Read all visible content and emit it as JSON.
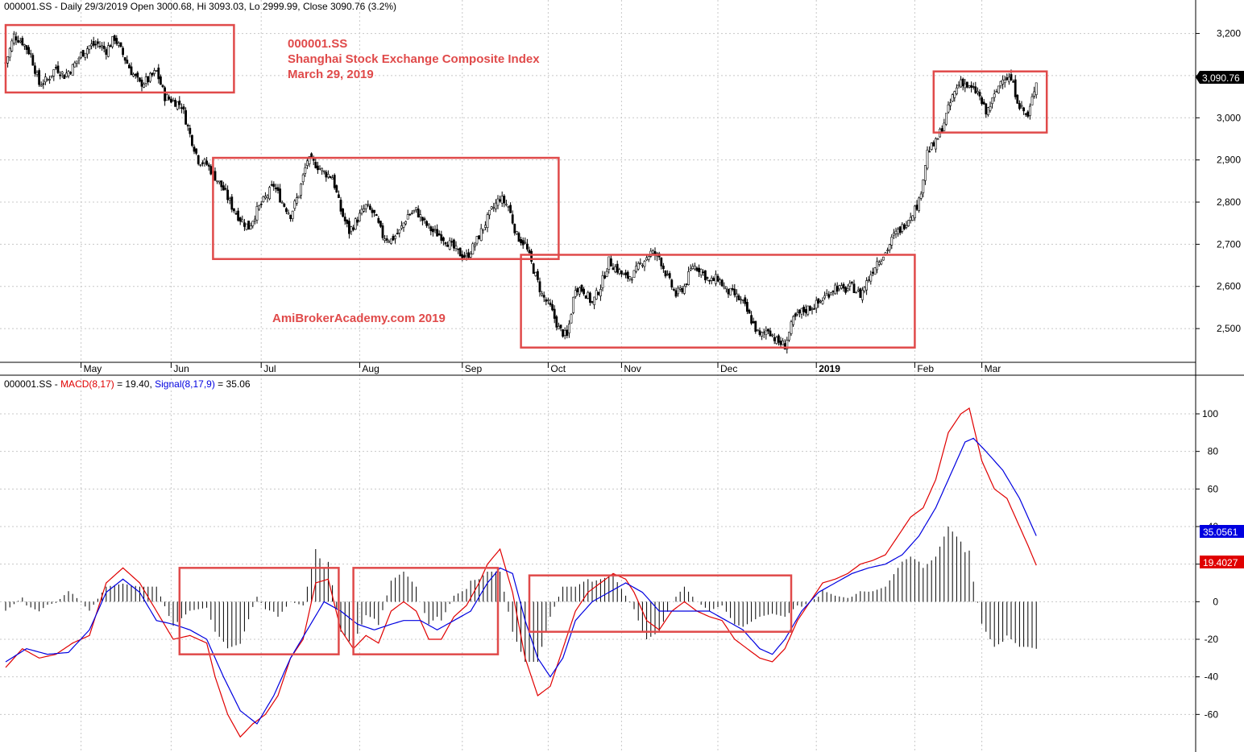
{
  "chart_data": [
    {
      "type": "candlestick",
      "header": "000001.SS - Daily 29/3/2019 Open 3000.68, Hi 3093.03, Lo 2999.99, Close 3090.76 (3.2%)",
      "annotation_lines": [
        "000001.SS",
        "Shanghai Stock Exchange Composite Index",
        "March 29, 2019"
      ],
      "watermark": "AmiBrokerAcademy.com   2019",
      "month_labels": [
        "May",
        "Jun",
        "Jul",
        "Aug",
        "Sep",
        "Oct",
        "Nov",
        "Dec",
        "2019",
        "Feb",
        "Mar"
      ],
      "y_ticks": [
        "2,500",
        "2,600",
        "2,700",
        "2,800",
        "2,900",
        "3,000",
        "3,100",
        "3,200"
      ],
      "ylim": [
        2420,
        3245
      ],
      "last_close_label": "3,090.76",
      "grid": true,
      "candle_color_up": "#ffffff",
      "candle_color_down": "#000000",
      "close_path": [
        [
          0,
          3130
        ],
        [
          4,
          3195
        ],
        [
          8,
          3180
        ],
        [
          12,
          3150
        ],
        [
          16,
          3080
        ],
        [
          20,
          3090
        ],
        [
          24,
          3120
        ],
        [
          28,
          3100
        ],
        [
          32,
          3120
        ],
        [
          36,
          3150
        ],
        [
          40,
          3170
        ],
        [
          44,
          3175
        ],
        [
          48,
          3160
        ],
        [
          52,
          3190
        ],
        [
          56,
          3150
        ],
        [
          60,
          3110
        ],
        [
          64,
          3080
        ],
        [
          68,
          3090
        ],
        [
          72,
          3110
        ],
        [
          76,
          3050
        ],
        [
          80,
          3040
        ],
        [
          84,
          3030
        ],
        [
          88,
          2960
        ],
        [
          92,
          2900
        ],
        [
          96,
          2890
        ],
        [
          100,
          2860
        ],
        [
          104,
          2830
        ],
        [
          108,
          2790
        ],
        [
          112,
          2760
        ],
        [
          116,
          2740
        ],
        [
          120,
          2780
        ],
        [
          124,
          2810
        ],
        [
          128,
          2840
        ],
        [
          132,
          2800
        ],
        [
          136,
          2770
        ],
        [
          140,
          2820
        ],
        [
          144,
          2900
        ],
        [
          148,
          2890
        ],
        [
          152,
          2870
        ],
        [
          156,
          2860
        ],
        [
          160,
          2780
        ],
        [
          164,
          2730
        ],
        [
          168,
          2760
        ],
        [
          172,
          2790
        ],
        [
          176,
          2770
        ],
        [
          180,
          2720
        ],
        [
          184,
          2710
        ],
        [
          188,
          2730
        ],
        [
          192,
          2770
        ],
        [
          196,
          2780
        ],
        [
          200,
          2750
        ],
        [
          204,
          2730
        ],
        [
          208,
          2720
        ],
        [
          212,
          2700
        ],
        [
          216,
          2680
        ],
        [
          220,
          2670
        ],
        [
          224,
          2700
        ],
        [
          228,
          2740
        ],
        [
          232,
          2780
        ],
        [
          236,
          2810
        ],
        [
          240,
          2790
        ],
        [
          244,
          2720
        ],
        [
          248,
          2700
        ],
        [
          252,
          2640
        ],
        [
          256,
          2580
        ],
        [
          260,
          2550
        ],
        [
          264,
          2500
        ],
        [
          268,
          2480
        ],
        [
          272,
          2600
        ],
        [
          276,
          2590
        ],
        [
          280,
          2560
        ],
        [
          284,
          2600
        ],
        [
          288,
          2660
        ],
        [
          292,
          2640
        ],
        [
          296,
          2620
        ],
        [
          300,
          2630
        ],
        [
          304,
          2660
        ],
        [
          308,
          2680
        ],
        [
          312,
          2670
        ],
        [
          316,
          2620
        ],
        [
          320,
          2580
        ],
        [
          324,
          2600
        ],
        [
          328,
          2650
        ],
        [
          332,
          2640
        ],
        [
          336,
          2610
        ],
        [
          340,
          2620
        ],
        [
          344,
          2590
        ],
        [
          348,
          2580
        ],
        [
          352,
          2560
        ],
        [
          356,
          2520
        ],
        [
          360,
          2480
        ],
        [
          364,
          2500
        ],
        [
          368,
          2470
        ],
        [
          372,
          2460
        ],
        [
          376,
          2520
        ],
        [
          380,
          2540
        ],
        [
          384,
          2550
        ],
        [
          388,
          2560
        ],
        [
          392,
          2580
        ],
        [
          396,
          2600
        ],
        [
          400,
          2590
        ],
        [
          404,
          2600
        ],
        [
          408,
          2580
        ],
        [
          412,
          2620
        ],
        [
          416,
          2660
        ],
        [
          420,
          2680
        ],
        [
          424,
          2720
        ],
        [
          428,
          2740
        ],
        [
          432,
          2770
        ],
        [
          436,
          2800
        ],
        [
          440,
          2920
        ],
        [
          444,
          2940
        ],
        [
          448,
          2990
        ],
        [
          452,
          3050
        ],
        [
          456,
          3090
        ],
        [
          460,
          3070
        ],
        [
          464,
          3060
        ],
        [
          468,
          3010
        ],
        [
          472,
          3050
        ],
        [
          476,
          3100
        ],
        [
          480,
          3090
        ],
        [
          484,
          3030
        ],
        [
          488,
          3000
        ],
        [
          492,
          3090
        ]
      ],
      "highlight_boxes": [
        {
          "from_bar": 0,
          "to_bar": 109,
          "price_top": 3220,
          "price_bottom": 3060
        },
        {
          "from_bar": 99,
          "to_bar": 264,
          "price_top": 2905,
          "price_bottom": 2665
        },
        {
          "from_bar": 246,
          "to_bar": 434,
          "price_top": 2675,
          "price_bottom": 2455
        },
        {
          "from_bar": 443,
          "to_bar": 497,
          "price_top": 3110,
          "price_bottom": 2965
        }
      ]
    },
    {
      "type": "macd",
      "header_prefix": "000001.SS - ",
      "macd_label": "MACD(8,17)",
      "macd_value": " = 19.40, ",
      "signal_label": "Signal(8,17,9)",
      "signal_value": " = 35.06",
      "y_ticks": [
        "-60",
        "-40",
        "-20",
        "0",
        "20",
        "40",
        "60",
        "80",
        "100"
      ],
      "ylim": [
        -80,
        112
      ],
      "macd_last_label": "19.4027",
      "signal_last_label": "35.0561",
      "macd_color": "#e00000",
      "signal_color": "#0000e0",
      "histogram_color": "#000000",
      "macd_path": [
        [
          0,
          -35
        ],
        [
          8,
          -25
        ],
        [
          16,
          -30
        ],
        [
          24,
          -28
        ],
        [
          32,
          -22
        ],
        [
          40,
          -18
        ],
        [
          48,
          10
        ],
        [
          56,
          18
        ],
        [
          64,
          10
        ],
        [
          72,
          -5
        ],
        [
          80,
          -20
        ],
        [
          88,
          -18
        ],
        [
          96,
          -22
        ],
        [
          100,
          -40
        ],
        [
          106,
          -60
        ],
        [
          112,
          -72
        ],
        [
          118,
          -65
        ],
        [
          124,
          -60
        ],
        [
          130,
          -50
        ],
        [
          136,
          -30
        ],
        [
          142,
          -20
        ],
        [
          148,
          10
        ],
        [
          154,
          12
        ],
        [
          160,
          -15
        ],
        [
          166,
          -25
        ],
        [
          172,
          -18
        ],
        [
          178,
          -22
        ],
        [
          184,
          -5
        ],
        [
          190,
          0
        ],
        [
          196,
          -5
        ],
        [
          202,
          -20
        ],
        [
          208,
          -20
        ],
        [
          214,
          -8
        ],
        [
          220,
          -2
        ],
        [
          226,
          10
        ],
        [
          230,
          20
        ],
        [
          236,
          28
        ],
        [
          242,
          5
        ],
        [
          248,
          -30
        ],
        [
          254,
          -50
        ],
        [
          260,
          -45
        ],
        [
          266,
          -25
        ],
        [
          272,
          -5
        ],
        [
          278,
          5
        ],
        [
          284,
          10
        ],
        [
          290,
          15
        ],
        [
          296,
          12
        ],
        [
          300,
          5
        ],
        [
          306,
          -10
        ],
        [
          312,
          -15
        ],
        [
          318,
          -5
        ],
        [
          324,
          0
        ],
        [
          330,
          -5
        ],
        [
          336,
          -8
        ],
        [
          342,
          -10
        ],
        [
          348,
          -20
        ],
        [
          354,
          -25
        ],
        [
          360,
          -30
        ],
        [
          366,
          -32
        ],
        [
          372,
          -25
        ],
        [
          378,
          -10
        ],
        [
          384,
          0
        ],
        [
          390,
          10
        ],
        [
          396,
          12
        ],
        [
          402,
          15
        ],
        [
          408,
          20
        ],
        [
          414,
          22
        ],
        [
          420,
          25
        ],
        [
          426,
          35
        ],
        [
          432,
          45
        ],
        [
          438,
          50
        ],
        [
          444,
          65
        ],
        [
          450,
          90
        ],
        [
          456,
          100
        ],
        [
          460,
          103
        ],
        [
          466,
          75
        ],
        [
          472,
          60
        ],
        [
          478,
          55
        ],
        [
          484,
          40
        ],
        [
          488,
          30
        ],
        [
          492,
          19.4
        ]
      ],
      "signal_path": [
        [
          0,
          -32
        ],
        [
          10,
          -25
        ],
        [
          20,
          -28
        ],
        [
          30,
          -27
        ],
        [
          40,
          -15
        ],
        [
          48,
          5
        ],
        [
          56,
          12
        ],
        [
          64,
          5
        ],
        [
          72,
          -10
        ],
        [
          80,
          -12
        ],
        [
          88,
          -15
        ],
        [
          96,
          -20
        ],
        [
          104,
          -40
        ],
        [
          112,
          -58
        ],
        [
          120,
          -65
        ],
        [
          128,
          -50
        ],
        [
          136,
          -30
        ],
        [
          144,
          -15
        ],
        [
          152,
          0
        ],
        [
          160,
          -5
        ],
        [
          168,
          -12
        ],
        [
          176,
          -15
        ],
        [
          184,
          -12
        ],
        [
          190,
          -10
        ],
        [
          198,
          -10
        ],
        [
          206,
          -15
        ],
        [
          214,
          -10
        ],
        [
          222,
          -5
        ],
        [
          230,
          10
        ],
        [
          236,
          18
        ],
        [
          242,
          15
        ],
        [
          248,
          -10
        ],
        [
          254,
          -30
        ],
        [
          260,
          -40
        ],
        [
          266,
          -30
        ],
        [
          272,
          -10
        ],
        [
          280,
          0
        ],
        [
          288,
          5
        ],
        [
          296,
          10
        ],
        [
          304,
          5
        ],
        [
          312,
          -5
        ],
        [
          320,
          -5
        ],
        [
          328,
          -5
        ],
        [
          336,
          -5
        ],
        [
          344,
          -10
        ],
        [
          352,
          -15
        ],
        [
          360,
          -25
        ],
        [
          366,
          -28
        ],
        [
          372,
          -20
        ],
        [
          380,
          -5
        ],
        [
          388,
          5
        ],
        [
          396,
          10
        ],
        [
          404,
          15
        ],
        [
          412,
          18
        ],
        [
          420,
          20
        ],
        [
          428,
          25
        ],
        [
          436,
          35
        ],
        [
          444,
          50
        ],
        [
          452,
          70
        ],
        [
          458,
          85
        ],
        [
          462,
          87
        ],
        [
          468,
          80
        ],
        [
          476,
          70
        ],
        [
          484,
          55
        ],
        [
          492,
          35.06
        ]
      ],
      "highlight_boxes": [
        {
          "from_bar": 83,
          "to_bar": 159,
          "value_top": 18,
          "value_bottom": -28
        },
        {
          "from_bar": 166,
          "to_bar": 235,
          "value_top": 18,
          "value_bottom": -28
        },
        {
          "from_bar": 250,
          "to_bar": 375,
          "value_top": 14,
          "value_bottom": -16
        }
      ]
    }
  ]
}
